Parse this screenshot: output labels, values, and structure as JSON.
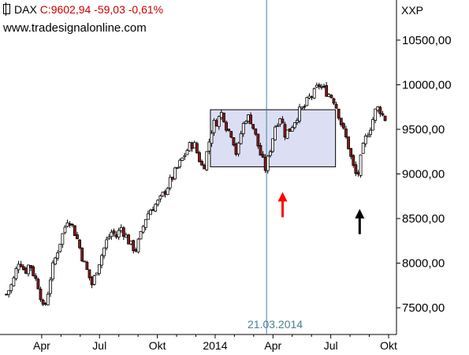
{
  "header": {
    "symbol": "DAX",
    "quote": "C:9602,94 -59,03 -0,61%",
    "source": "www.tradesignalonline.com"
  },
  "axis_name": "XXP",
  "vline_label": "21.03.2014",
  "colors": {
    "up_candle": "#ffffff",
    "down_candle": "#8b1a1a",
    "box_fill": "#dcdff4",
    "vline": "#4a7f96",
    "red_arrow": "#ff0000",
    "black_arrow": "#000000"
  },
  "chart_data": {
    "type": "candlestick",
    "title": "DAX",
    "x_tick_labels": [
      "Apr",
      "Jul",
      "Okt",
      "2014",
      "Apr",
      "Jul",
      "Okt"
    ],
    "y_tick_labels": [
      "10500,00",
      "10000,00",
      "9500,00",
      "9000,00",
      "8500,00",
      "8000,00",
      "7500,00"
    ],
    "y_ticks": [
      10500,
      10000,
      9500,
      9000,
      8500,
      8000,
      7500
    ],
    "ylim": [
      7200,
      10950
    ],
    "x_range": [
      "2013-02",
      "2014-10"
    ],
    "last_close": 9602.94,
    "change": -59.03,
    "change_pct": -0.61,
    "vertical_line": {
      "date": "2014-03-21"
    },
    "highlight_box": {
      "from": "2014-01",
      "to": "2014-07",
      "low": 9080,
      "high": 9720
    },
    "arrows": [
      {
        "date": "2014-04",
        "color": "red",
        "direction": "up",
        "at_level": 8780
      },
      {
        "date": "2014-08",
        "color": "black",
        "direction": "up",
        "at_level": 8590
      }
    ],
    "path": [
      [
        "2013-02",
        7650
      ],
      [
        "2013-02",
        7780
      ],
      [
        "2013-02",
        8050
      ],
      [
        "2013-03",
        7900
      ],
      [
        "2013-03",
        8000
      ],
      [
        "2013-03",
        7850
      ],
      [
        "2013-03",
        7720
      ],
      [
        "2013-04",
        7450
      ],
      [
        "2013-04",
        7650
      ],
      [
        "2013-04",
        7900
      ],
      [
        "2013-04",
        8050
      ],
      [
        "2013-04",
        8200
      ],
      [
        "2013-05",
        8350
      ],
      [
        "2013-05",
        8520
      ],
      [
        "2013-05",
        8400
      ],
      [
        "2013-05",
        8250
      ],
      [
        "2013-06",
        8050
      ],
      [
        "2013-06",
        7900
      ],
      [
        "2013-06",
        7750
      ],
      [
        "2013-06",
        7950
      ],
      [
        "2013-07",
        8100
      ],
      [
        "2013-07",
        8250
      ],
      [
        "2013-07",
        8350
      ],
      [
        "2013-07",
        8300
      ],
      [
        "2013-08",
        8400
      ],
      [
        "2013-08",
        8300
      ],
      [
        "2013-08",
        8200
      ],
      [
        "2013-08",
        8150
      ],
      [
        "2013-09",
        8300
      ],
      [
        "2013-09",
        8500
      ],
      [
        "2013-09",
        8600
      ],
      [
        "2013-09",
        8650
      ],
      [
        "2013-10",
        8700
      ],
      [
        "2013-10",
        8800
      ],
      [
        "2013-10",
        8900
      ],
      [
        "2013-10",
        9000
      ],
      [
        "2013-11",
        9100
      ],
      [
        "2013-11",
        9200
      ],
      [
        "2013-11",
        9300
      ],
      [
        "2013-11",
        9350
      ],
      [
        "2013-12",
        9200
      ],
      [
        "2013-12",
        9050
      ],
      [
        "2013-12",
        9300
      ],
      [
        "2013-12",
        9550
      ],
      [
        "2014-01",
        9600
      ],
      [
        "2014-01",
        9700
      ],
      [
        "2014-01",
        9500
      ],
      [
        "2014-01",
        9450
      ],
      [
        "2014-02",
        9200
      ],
      [
        "2014-02",
        9500
      ],
      [
        "2014-02",
        9650
      ],
      [
        "2014-02",
        9600
      ],
      [
        "2014-03",
        9400
      ],
      [
        "2014-03",
        9200
      ],
      [
        "2014-03",
        9050
      ],
      [
        "2014-03",
        9300
      ],
      [
        "2014-04",
        9550
      ],
      [
        "2014-04",
        9650
      ],
      [
        "2014-04",
        9450
      ],
      [
        "2014-04",
        9500
      ],
      [
        "2014-05",
        9600
      ],
      [
        "2014-05",
        9700
      ],
      [
        "2014-05",
        9750
      ],
      [
        "2014-05",
        9850
      ],
      [
        "2014-06",
        9900
      ],
      [
        "2014-06",
        10000
      ],
      [
        "2014-06",
        9950
      ],
      [
        "2014-06",
        9900
      ],
      [
        "2014-07",
        9850
      ],
      [
        "2014-07",
        9700
      ],
      [
        "2014-07",
        9500
      ],
      [
        "2014-07",
        9350
      ],
      [
        "2014-08",
        9100
      ],
      [
        "2014-08",
        8950
      ],
      [
        "2014-08",
        9250
      ],
      [
        "2014-08",
        9450
      ],
      [
        "2014-09",
        9550
      ],
      [
        "2014-09",
        9700
      ],
      [
        "2014-09",
        9750
      ],
      [
        "2014-09",
        9650
      ],
      [
        "2014-09",
        9600
      ]
    ]
  }
}
